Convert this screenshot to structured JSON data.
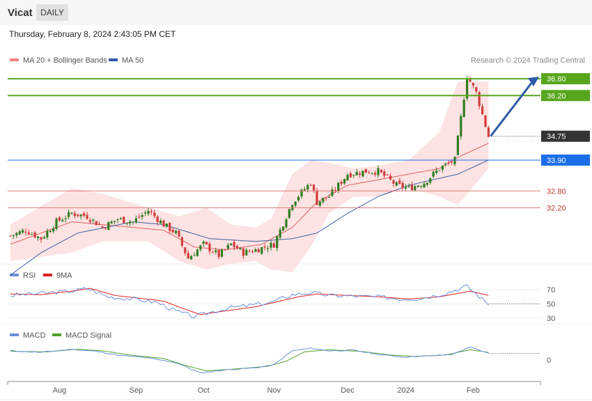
{
  "header": {
    "title": "Vicat",
    "timeframe": "DAILY"
  },
  "datetime": "Thursday, February 8, 2024 2:43:05 PM CET",
  "credit": "Research © 2024 Trading Central",
  "colors": {
    "up": "#2f7d1f",
    "down": "#d33b3b",
    "ma20": "#e06060",
    "ma50": "#3a5fa8",
    "band": "#fddcdc",
    "rsi": "#6a8fdb",
    "rsi9": "#e02020",
    "macd": "#6a8fdb",
    "signal": "#4fa32a",
    "green_level": "#58a61c",
    "blue_level": "#1a6ee8",
    "red_level": "#e07a7a",
    "dark_level": "#333333",
    "arrow": "#2e5aa8"
  },
  "chart_data": [
    {
      "type": "candlestick",
      "legend": [
        {
          "name": "MA 20 + Bollinger Bands",
          "color": "#f08080"
        },
        {
          "name": "MA 50",
          "color": "#2e5aa8"
        }
      ],
      "x_ticks": [
        "Aug",
        "Sep",
        "Oct",
        "Nov",
        "Dec",
        "2024",
        "Feb"
      ],
      "ylim": [
        30.3,
        37.1
      ],
      "levels": [
        {
          "value": 36.8,
          "label": "36.80",
          "style": "green"
        },
        {
          "value": 36.2,
          "label": "36.20",
          "style": "green"
        },
        {
          "value": 34.75,
          "label": "34.75",
          "style": "dark"
        },
        {
          "value": 33.9,
          "label": "33.90",
          "style": "blue"
        },
        {
          "value": 32.8,
          "label": "32.80",
          "style": "red"
        },
        {
          "value": 32.2,
          "label": "32.20",
          "style": "red"
        }
      ],
      "projection": {
        "from": 34.75,
        "to": 36.8
      },
      "close_anchors": [
        [
          0,
          31.2
        ],
        [
          5,
          31.4
        ],
        [
          10,
          31.1
        ],
        [
          15,
          31.7
        ],
        [
          20,
          32.0
        ],
        [
          25,
          31.9
        ],
        [
          30,
          31.5
        ],
        [
          35,
          31.8
        ],
        [
          40,
          31.7
        ],
        [
          45,
          32.1
        ],
        [
          50,
          31.6
        ],
        [
          54,
          31.3
        ],
        [
          58,
          30.4
        ],
        [
          63,
          30.9
        ],
        [
          68,
          30.5
        ],
        [
          72,
          30.9
        ],
        [
          76,
          30.6
        ],
        [
          80,
          30.7
        ],
        [
          86,
          30.9
        ],
        [
          92,
          32.4
        ],
        [
          98,
          33.1
        ],
        [
          100,
          32.4
        ],
        [
          104,
          32.6
        ],
        [
          110,
          33.4
        ],
        [
          116,
          33.5
        ],
        [
          120,
          33.5
        ],
        [
          126,
          33.0
        ],
        [
          130,
          32.9
        ],
        [
          135,
          33.1
        ],
        [
          140,
          33.6
        ],
        [
          145,
          33.9
        ],
        [
          149,
          36.9
        ],
        [
          152,
          36.3
        ],
        [
          156,
          34.75
        ]
      ],
      "ma20_anchors": [
        [
          0,
          30.9
        ],
        [
          20,
          31.7
        ],
        [
          40,
          31.5
        ],
        [
          50,
          31.4
        ],
        [
          60,
          30.8
        ],
        [
          70,
          30.7
        ],
        [
          82,
          30.9
        ],
        [
          92,
          31.5
        ],
        [
          100,
          32.4
        ],
        [
          110,
          33.0
        ],
        [
          120,
          33.2
        ],
        [
          130,
          33.4
        ],
        [
          140,
          33.6
        ],
        [
          146,
          34.0
        ],
        [
          156,
          34.5
        ]
      ],
      "ma50_anchors": [
        [
          0,
          29.8
        ],
        [
          10,
          30.6
        ],
        [
          22,
          31.3
        ],
        [
          40,
          31.7
        ],
        [
          50,
          31.6
        ],
        [
          65,
          31.1
        ],
        [
          80,
          31.0
        ],
        [
          92,
          31.1
        ],
        [
          100,
          31.3
        ],
        [
          110,
          32.0
        ],
        [
          120,
          32.6
        ],
        [
          130,
          33.0
        ],
        [
          146,
          33.4
        ],
        [
          156,
          33.9
        ]
      ],
      "bb_anchors": [
        [
          0,
          30.3,
          31.6
        ],
        [
          20,
          30.6,
          32.9
        ],
        [
          30,
          31.0,
          32.7
        ],
        [
          45,
          31.0,
          32.2
        ],
        [
          55,
          30.3,
          31.9
        ],
        [
          64,
          30.0,
          32.2
        ],
        [
          72,
          30.2,
          31.6
        ],
        [
          80,
          30.3,
          31.5
        ],
        [
          85,
          30.0,
          31.8
        ],
        [
          92,
          29.9,
          33.4
        ],
        [
          98,
          30.8,
          33.9
        ],
        [
          104,
          32.0,
          33.8
        ],
        [
          112,
          32.6,
          33.6
        ],
        [
          120,
          32.6,
          33.7
        ],
        [
          130,
          32.9,
          33.9
        ],
        [
          140,
          32.6,
          34.9
        ],
        [
          146,
          32.3,
          36.7
        ],
        [
          156,
          33.6,
          36.7
        ]
      ]
    },
    {
      "type": "line",
      "legend": [
        {
          "name": "RSI",
          "color": "#6a8fdb"
        },
        {
          "name": "9MA",
          "color": "#e02020"
        }
      ],
      "ylim": [
        25,
        78
      ],
      "ticks": [
        70,
        50,
        30
      ],
      "rsi_anchors": [
        [
          0,
          62
        ],
        [
          10,
          65
        ],
        [
          20,
          68
        ],
        [
          25,
          72
        ],
        [
          32,
          60
        ],
        [
          40,
          57
        ],
        [
          48,
          52
        ],
        [
          54,
          40
        ],
        [
          60,
          32
        ],
        [
          65,
          38
        ],
        [
          72,
          45
        ],
        [
          78,
          48
        ],
        [
          85,
          52
        ],
        [
          92,
          63
        ],
        [
          98,
          66
        ],
        [
          104,
          62
        ],
        [
          112,
          61
        ],
        [
          120,
          60
        ],
        [
          128,
          57
        ],
        [
          134,
          58
        ],
        [
          142,
          65
        ],
        [
          149,
          75
        ],
        [
          152,
          64
        ],
        [
          156,
          50
        ]
      ],
      "ma9_anchors": [
        [
          0,
          64
        ],
        [
          10,
          63
        ],
        [
          20,
          68
        ],
        [
          26,
          72
        ],
        [
          34,
          62
        ],
        [
          42,
          58
        ],
        [
          50,
          54
        ],
        [
          56,
          44
        ],
        [
          62,
          35
        ],
        [
          70,
          40
        ],
        [
          80,
          46
        ],
        [
          86,
          52
        ],
        [
          94,
          60
        ],
        [
          100,
          64
        ],
        [
          110,
          62
        ],
        [
          120,
          60
        ],
        [
          130,
          57
        ],
        [
          140,
          60
        ],
        [
          150,
          68
        ],
        [
          156,
          62
        ]
      ]
    },
    {
      "type": "line",
      "legend": [
        {
          "name": "MACD",
          "color": "#6a8fdb"
        },
        {
          "name": "MACD Signal",
          "color": "#4fa32a"
        }
      ],
      "ylim": [
        -0.5,
        0.5
      ],
      "ticks": [
        0
      ],
      "macd_anchors": [
        [
          0,
          0.15
        ],
        [
          10,
          0.12
        ],
        [
          20,
          0.18
        ],
        [
          28,
          0.14
        ],
        [
          36,
          0.06
        ],
        [
          44,
          0.02
        ],
        [
          54,
          -0.08
        ],
        [
          62,
          -0.28
        ],
        [
          70,
          -0.22
        ],
        [
          80,
          -0.18
        ],
        [
          86,
          -0.12
        ],
        [
          92,
          0.15
        ],
        [
          98,
          0.2
        ],
        [
          104,
          0.15
        ],
        [
          112,
          0.16
        ],
        [
          120,
          0.08
        ],
        [
          128,
          0.03
        ],
        [
          136,
          0.05
        ],
        [
          144,
          0.08
        ],
        [
          150,
          0.22
        ],
        [
          156,
          0.1
        ]
      ],
      "signal_anchors": [
        [
          0,
          0.14
        ],
        [
          12,
          0.13
        ],
        [
          22,
          0.18
        ],
        [
          30,
          0.15
        ],
        [
          40,
          0.06
        ],
        [
          50,
          0.0
        ],
        [
          58,
          -0.15
        ],
        [
          64,
          -0.24
        ],
        [
          74,
          -0.2
        ],
        [
          84,
          -0.15
        ],
        [
          90,
          -0.05
        ],
        [
          96,
          0.13
        ],
        [
          104,
          0.17
        ],
        [
          114,
          0.14
        ],
        [
          124,
          0.07
        ],
        [
          132,
          0.04
        ],
        [
          142,
          0.07
        ],
        [
          150,
          0.17
        ],
        [
          156,
          0.12
        ]
      ]
    }
  ]
}
